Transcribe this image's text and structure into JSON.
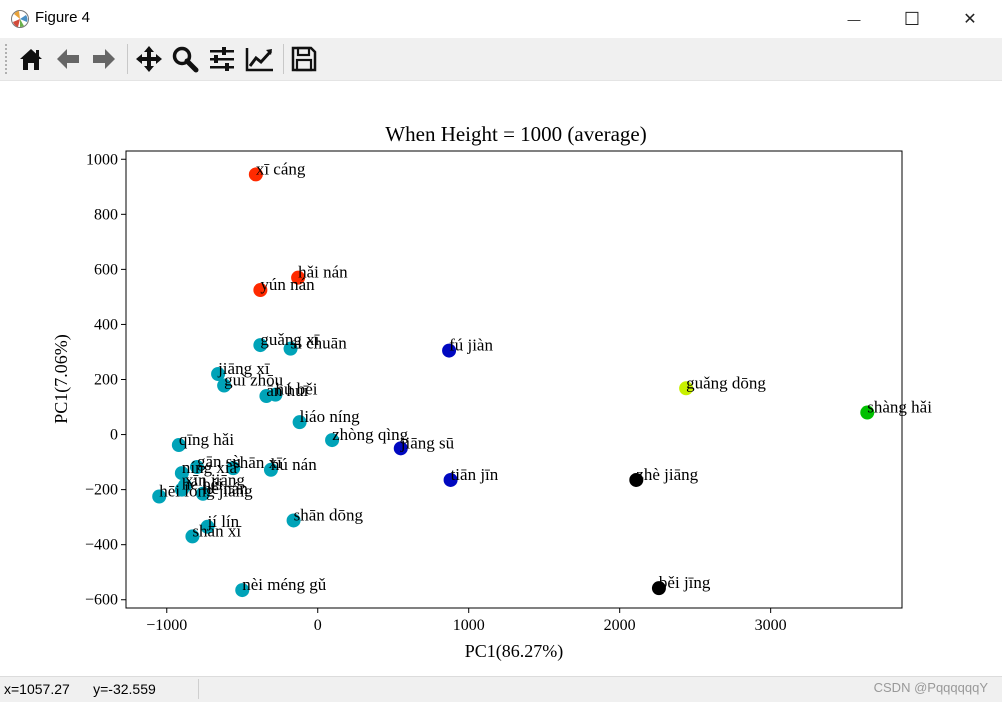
{
  "window": {
    "title": "Figure 4",
    "minimize_glyph": "—",
    "maximize_glyph": "☐",
    "close_glyph": "✕"
  },
  "toolbar": {
    "buttons": [
      {
        "name": "home-button",
        "icon": "home-icon"
      },
      {
        "name": "back-button",
        "icon": "arrow-left-icon"
      },
      {
        "name": "forward-button",
        "icon": "arrow-right-icon"
      },
      {
        "name": "pan-button",
        "icon": "move-icon"
      },
      {
        "name": "zoom-button",
        "icon": "magnifier-icon"
      },
      {
        "name": "subplots-button",
        "icon": "sliders-icon"
      },
      {
        "name": "customize-button",
        "icon": "line-chart-icon"
      },
      {
        "name": "save-button",
        "icon": "floppy-disk-icon"
      }
    ]
  },
  "status": {
    "coords": "x=1057.27      y=-32.559",
    "watermark": "CSDN @PqqqqqqY"
  },
  "chart_data": {
    "type": "scatter",
    "title": "When Height = 1000 (average)",
    "xlabel": "PC1(86.27%)",
    "ylabel": "PC1(7.06%)",
    "xlim": [
      -1270,
      3870
    ],
    "ylim": [
      -630,
      1030
    ],
    "xticks": [
      -1000,
      0,
      1000,
      2000,
      3000
    ],
    "yticks": [
      -600,
      -400,
      -200,
      0,
      200,
      400,
      600,
      800,
      1000
    ],
    "tick_labels": {
      "x": [
        "−1000",
        "0",
        "1000",
        "2000",
        "3000"
      ],
      "y": [
        "−600",
        "−400",
        "−200",
        "0",
        "200",
        "400",
        "600",
        "800",
        "1000"
      ]
    },
    "grid": false,
    "legend": "none",
    "colors": {
      "red": "#ff2a00",
      "teal": "#00a3b8",
      "blue": "#0008c0",
      "black": "#000000",
      "yellow": "#c8f000",
      "green": "#00c000"
    },
    "points": [
      {
        "label": "xī cáng",
        "x": -410,
        "y": 945,
        "color": "#ff2a00"
      },
      {
        "label": "hǎi nán",
        "x": -130,
        "y": 570,
        "color": "#ff2a00"
      },
      {
        "label": "yún nán",
        "x": -380,
        "y": 525,
        "color": "#ff2a00"
      },
      {
        "label": "guǎng xī",
        "x": -380,
        "y": 325,
        "color": "#00a3b8"
      },
      {
        "label": "sì chuān",
        "x": -180,
        "y": 312,
        "color": "#00a3b8"
      },
      {
        "label": "jiāng xī",
        "x": -660,
        "y": 220,
        "color": "#00a3b8"
      },
      {
        "label": "guì zhōu",
        "x": -620,
        "y": 178,
        "color": "#00a3b8"
      },
      {
        "label": "ān huī",
        "x": -340,
        "y": 140,
        "color": "#00a3b8"
      },
      {
        "label": "hú běi",
        "x": -280,
        "y": 145,
        "color": "#00a3b8"
      },
      {
        "label": "liáo níng",
        "x": -120,
        "y": 45,
        "color": "#00a3b8"
      },
      {
        "label": "qīng hǎi",
        "x": -920,
        "y": -38,
        "color": "#00a3b8"
      },
      {
        "label": "zhòng qìng",
        "x": 95,
        "y": -20,
        "color": "#00a3b8"
      },
      {
        "label": "gān sù",
        "x": -800,
        "y": -118,
        "color": "#00a3b8"
      },
      {
        "label": "shān xī",
        "x": -560,
        "y": -122,
        "color": "#00a3b8"
      },
      {
        "label": "hú nán",
        "x": -310,
        "y": -128,
        "color": "#00a3b8"
      },
      {
        "label": "níng xià",
        "x": -900,
        "y": -140,
        "color": "#00a3b8"
      },
      {
        "label": "xīn jiāng",
        "x": -880,
        "y": -185,
        "color": "#00a3b8"
      },
      {
        "label": "hēi lóng jiāng",
        "x": -1050,
        "y": -225,
        "color": "#00a3b8"
      },
      {
        "label": "hé běi",
        "x": -900,
        "y": -200,
        "color": "#00a3b8"
      },
      {
        "label": "hé nán",
        "x": -760,
        "y": -215,
        "color": "#00a3b8"
      },
      {
        "label": "jí lín",
        "x": -730,
        "y": -335,
        "color": "#00a3b8"
      },
      {
        "label": "shān xī",
        "x": -830,
        "y": -370,
        "color": "#00a3b8"
      },
      {
        "label": "shān dōng",
        "x": -160,
        "y": -312,
        "color": "#00a3b8"
      },
      {
        "label": "nèi méng gǔ",
        "x": -500,
        "y": -565,
        "color": "#00a3b8"
      },
      {
        "label": "fú jiàn",
        "x": 870,
        "y": 305,
        "color": "#0008c0"
      },
      {
        "label": "jiāng sū",
        "x": 550,
        "y": -50,
        "color": "#0008c0"
      },
      {
        "label": "tiān jīn",
        "x": 880,
        "y": -165,
        "color": "#0008c0"
      },
      {
        "label": "zhè jiāng",
        "x": 2110,
        "y": -165,
        "color": "#000000"
      },
      {
        "label": "běi jīng",
        "x": 2260,
        "y": -558,
        "color": "#000000"
      },
      {
        "label": "guǎng dōng",
        "x": 2440,
        "y": 168,
        "color": "#c8f000"
      },
      {
        "label": "shàng hǎi",
        "x": 3640,
        "y": 80,
        "color": "#00c000"
      }
    ]
  }
}
